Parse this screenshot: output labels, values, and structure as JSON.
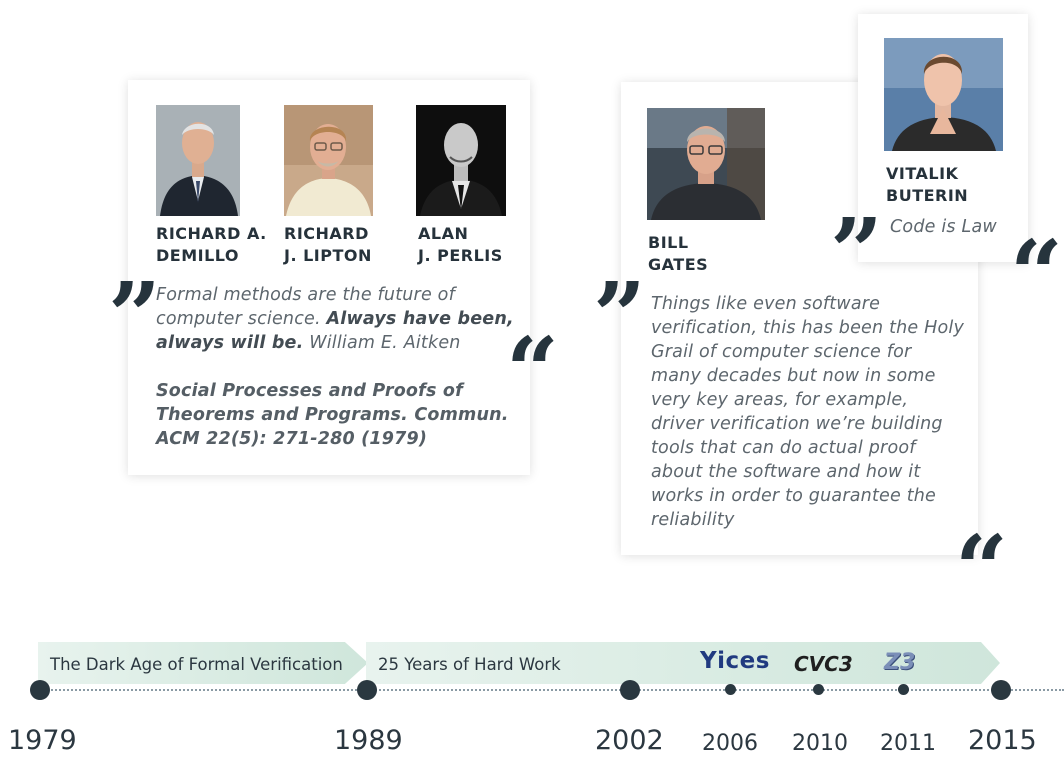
{
  "cards": {
    "left": {
      "people": [
        {
          "line1": "RICHARD A.",
          "line2": "DEMILLO"
        },
        {
          "line1": "RICHARD",
          "line2": "J. LIPTON"
        },
        {
          "line1": "ALAN",
          "line2": "J. PERLIS"
        }
      ],
      "quote_plain": "Formal methods are the future of computer science. ",
      "quote_bold": "Always have been, always will be.",
      "quote_author": " William E. Aitken",
      "citation": "Social Processes and Proofs of Theorems and Programs. Commun. ACM 22(5): 271-280 (1979)"
    },
    "gates": {
      "line1": "BILL",
      "line2": "GATES",
      "quote": "Things like even software verification, this has been the Holy Grail of computer science for many decades but now in some very key areas, for example, driver verification we’re building tools that can do actual proof about the software and how it works in order to guarantee the reliability"
    },
    "buterin": {
      "line1": "VITALIK",
      "line2": "BUTERIN",
      "quote": "Code is Law"
    }
  },
  "quote_marks": {
    "open": "”",
    "close": "“"
  },
  "timeline": {
    "eras": [
      {
        "label": "The Dark Age of Formal Verification"
      },
      {
        "label": "25 Years of Hard Work"
      }
    ],
    "years": [
      "1979",
      "1989",
      "2002",
      "2006",
      "2010",
      "2011",
      "2015"
    ],
    "tools": [
      {
        "name": "Yices",
        "year": "2006",
        "color": "#203a80"
      },
      {
        "name": "CVC3",
        "year": "2010",
        "color": "#1f1f1f"
      },
      {
        "name": "Z3",
        "year": "2011",
        "color": "#7b8fb8"
      }
    ]
  },
  "colors": {
    "dark": "#2a3840",
    "band": "#d8ebe2",
    "text_grey": "#5d666d"
  }
}
